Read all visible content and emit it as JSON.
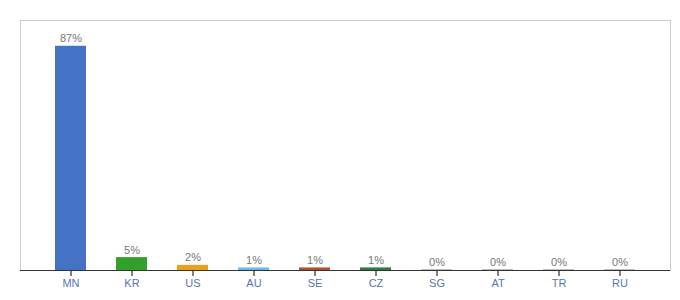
{
  "chart_data": {
    "type": "bar",
    "categories": [
      "MN",
      "KR",
      "US",
      "AU",
      "SE",
      "CZ",
      "SG",
      "AT",
      "TR",
      "RU"
    ],
    "values": [
      87,
      5,
      2,
      1,
      1,
      1,
      0.3,
      0.3,
      0.3,
      0.3
    ],
    "value_labels": [
      "87%",
      "5%",
      "2%",
      "1%",
      "1%",
      "1%",
      "0%",
      "0%",
      "0%",
      "0%"
    ],
    "colors": [
      "#4472c4",
      "#33a02c",
      "#e8a020",
      "#70b8e8",
      "#b05030",
      "#2d7a3a",
      "#aaaaaa",
      "#aaaaaa",
      "#aaaaaa",
      "#aaaaaa"
    ],
    "ylim": [
      0,
      97
    ],
    "yticks": [],
    "grid": false,
    "data_labels": true,
    "tick_labels": "x"
  }
}
